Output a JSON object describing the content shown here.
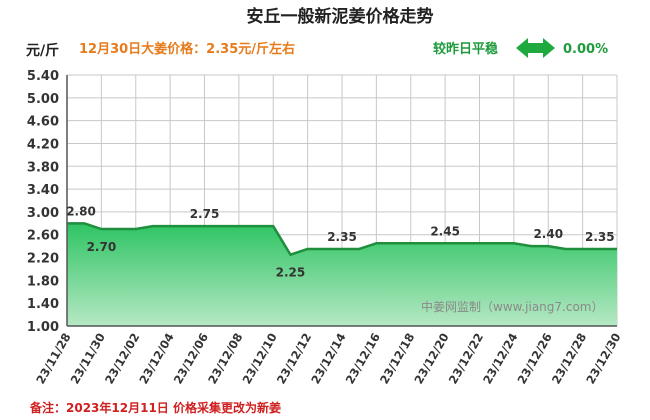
{
  "header": {
    "title": "安丘一般新泥姜价格走势",
    "unit": "元/斤",
    "price_note": "12月30日大姜价格：2.35元/斤左右",
    "change_label": "较昨日平稳",
    "change_value": "0.00%"
  },
  "footer": {
    "watermark": "中姜网监制（www.jiang7.com）",
    "note": "备注：2023年12月11日 价格采集更改为新姜"
  },
  "colors": {
    "line": "#1f8f3e",
    "area_top": "#2ec463",
    "area_bottom": "#b6e8c4",
    "grid": "#c8c8c8",
    "accent_orange": "#e77b1c",
    "accent_green": "#1e9b3c",
    "note_red": "#d02020"
  },
  "icons": {
    "change_indicator": "double-arrow-icon"
  },
  "chart_data": {
    "type": "area",
    "title": "安丘一般新泥姜价格走势",
    "ylabel": "元/斤",
    "ylim": [
      1.0,
      5.4
    ],
    "yticks": [
      "1.00",
      "1.40",
      "1.80",
      "2.20",
      "2.60",
      "3.00",
      "3.40",
      "3.80",
      "4.20",
      "4.60",
      "5.00",
      "5.40"
    ],
    "grid": true,
    "x": [
      "23/11/28",
      "23/11/29",
      "23/11/30",
      "23/12/01",
      "23/12/02",
      "23/12/03",
      "23/12/04",
      "23/12/05",
      "23/12/06",
      "23/12/07",
      "23/12/08",
      "23/12/09",
      "23/12/10",
      "23/12/11",
      "23/12/12",
      "23/12/13",
      "23/12/14",
      "23/12/15",
      "23/12/16",
      "23/12/17",
      "23/12/18",
      "23/12/19",
      "23/12/20",
      "23/12/21",
      "23/12/22",
      "23/12/23",
      "23/12/24",
      "23/12/25",
      "23/12/26",
      "23/12/27",
      "23/12/28",
      "23/12/29",
      "23/12/30"
    ],
    "xticks": [
      "23/11/28",
      "23/11/30",
      "23/12/02",
      "23/12/04",
      "23/12/06",
      "23/12/08",
      "23/12/10",
      "23/12/12",
      "23/12/14",
      "23/12/16",
      "23/12/18",
      "23/12/20",
      "23/12/22",
      "23/12/24",
      "23/12/26",
      "23/12/28",
      "23/12/30"
    ],
    "values": [
      2.8,
      2.8,
      2.7,
      2.7,
      2.7,
      2.75,
      2.75,
      2.75,
      2.75,
      2.75,
      2.75,
      2.75,
      2.75,
      2.25,
      2.35,
      2.35,
      2.35,
      2.35,
      2.45,
      2.45,
      2.45,
      2.45,
      2.45,
      2.45,
      2.45,
      2.45,
      2.45,
      2.4,
      2.4,
      2.35,
      2.35,
      2.35,
      2.35
    ],
    "data_labels": [
      {
        "x": "23/11/28",
        "value": 2.8,
        "text": "2.80"
      },
      {
        "x": "23/11/30",
        "value": 2.7,
        "text": "2.70"
      },
      {
        "x": "23/12/06",
        "value": 2.75,
        "text": "2.75"
      },
      {
        "x": "23/12/11",
        "value": 2.25,
        "text": "2.25"
      },
      {
        "x": "23/12/14",
        "value": 2.35,
        "text": "2.35"
      },
      {
        "x": "23/12/20",
        "value": 2.45,
        "text": "2.45"
      },
      {
        "x": "23/12/26",
        "value": 2.4,
        "text": "2.40"
      },
      {
        "x": "23/12/29",
        "value": 2.35,
        "text": "2.35"
      }
    ]
  }
}
